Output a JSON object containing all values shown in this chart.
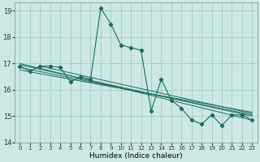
{
  "xlabel": "Humidex (Indice chaleur)",
  "xlim": [
    -0.5,
    23.5
  ],
  "ylim": [
    14,
    19.3
  ],
  "yticks": [
    14,
    15,
    16,
    17,
    18,
    19
  ],
  "xticks": [
    0,
    1,
    2,
    3,
    4,
    5,
    6,
    7,
    8,
    9,
    10,
    11,
    12,
    13,
    14,
    15,
    16,
    17,
    18,
    19,
    20,
    21,
    22,
    23
  ],
  "bg_color": "#cce8e5",
  "grid_color": "#a8ceca",
  "line_color": "#1a6b5e",
  "zigzag": [
    16.9,
    16.7,
    16.9,
    16.9,
    16.85,
    16.3,
    16.5,
    16.4,
    19.1,
    18.5,
    17.7,
    17.6,
    17.5,
    15.2,
    16.4,
    15.6,
    15.3,
    14.85,
    14.7,
    15.05,
    14.65,
    15.05,
    15.05,
    14.85
  ],
  "trend_lines": [
    {
      "x0": 0,
      "y0": 17.0,
      "x1": 23,
      "y1": 14.85
    },
    {
      "x0": 0,
      "y0": 16.95,
      "x1": 23,
      "y1": 15.0
    },
    {
      "x0": 0,
      "y0": 16.85,
      "x1": 23,
      "y1": 15.05
    },
    {
      "x0": 0,
      "y0": 16.75,
      "x1": 23,
      "y1": 15.15
    },
    {
      "x0": 2,
      "y0": 16.9,
      "x1": 23,
      "y1": 15.1
    }
  ]
}
